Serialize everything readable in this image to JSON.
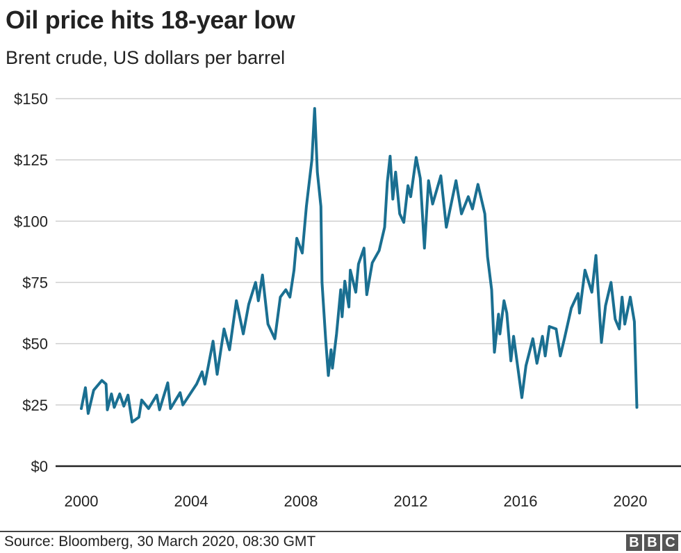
{
  "chart_data": {
    "type": "line",
    "title": "Oil price hits 18-year low",
    "subtitle": "Brent crude, US dollars per barrel",
    "xlabel": "",
    "ylabel": "",
    "xlim": [
      2000,
      2020.3
    ],
    "ylim": [
      0,
      150
    ],
    "x_ticks": [
      "2000",
      "2004",
      "2008",
      "2012",
      "2016",
      "2020"
    ],
    "y_ticks": [
      "$0",
      "$25",
      "$50",
      "$75",
      "$100",
      "$125",
      "$150"
    ],
    "grid": "horizontal",
    "line_color": "#1a6f91",
    "series": [
      {
        "x": [
          2000.0,
          2000.15,
          2000.25,
          2000.45,
          2000.75,
          2000.9,
          2000.95,
          2001.1,
          2001.2,
          2001.4,
          2001.55,
          2001.7,
          2001.85,
          2002.1,
          2002.2,
          2002.45,
          2002.75,
          2002.85,
          2003.15,
          2003.25,
          2003.6,
          2003.7,
          2004.2,
          2004.4,
          2004.5,
          2004.8,
          2004.95,
          2005.2,
          2005.4,
          2005.65,
          2005.9,
          2006.1,
          2006.35,
          2006.45,
          2006.6,
          2006.8,
          2007.05,
          2007.25,
          2007.45,
          2007.6,
          2007.75,
          2007.85,
          2008.05,
          2008.2,
          2008.4,
          2008.5,
          2008.6,
          2008.73,
          2008.77,
          2008.9,
          2009.0,
          2009.1,
          2009.15,
          2009.3,
          2009.45,
          2009.5,
          2009.6,
          2009.75,
          2009.8,
          2010.0,
          2010.1,
          2010.3,
          2010.4,
          2010.6,
          2010.85,
          2011.05,
          2011.15,
          2011.25,
          2011.35,
          2011.45,
          2011.6,
          2011.75,
          2011.9,
          2012.0,
          2012.2,
          2012.35,
          2012.5,
          2012.65,
          2012.8,
          2013.1,
          2013.3,
          2013.65,
          2013.85,
          2014.1,
          2014.25,
          2014.45,
          2014.7,
          2014.8,
          2014.95,
          2015.05,
          2015.2,
          2015.25,
          2015.4,
          2015.5,
          2015.65,
          2015.75,
          2016.05,
          2016.2,
          2016.45,
          2016.6,
          2016.8,
          2016.9,
          2017.05,
          2017.3,
          2017.45,
          2017.6,
          2017.85,
          2018.1,
          2018.15,
          2018.35,
          2018.6,
          2018.75,
          2018.85,
          2018.95,
          2019.1,
          2019.3,
          2019.45,
          2019.6,
          2019.7,
          2019.8,
          2020.0,
          2020.15,
          2020.24
        ],
        "y": [
          23.5,
          32,
          21.5,
          31,
          35,
          33.5,
          23,
          29.5,
          24,
          29.5,
          24.5,
          29,
          18,
          20,
          27,
          23.5,
          29,
          23,
          34,
          23.5,
          30,
          25,
          33.5,
          38.5,
          33.5,
          51,
          37.5,
          56,
          47.5,
          67.5,
          54,
          66,
          75,
          67.5,
          78,
          58,
          52,
          69,
          72,
          69,
          80,
          93,
          87,
          106,
          125,
          146,
          120,
          106,
          75,
          52,
          37,
          47.5,
          40,
          54,
          72,
          61,
          75.5,
          65,
          80,
          71,
          82.5,
          89,
          70,
          83,
          88,
          97.5,
          116,
          126.5,
          109,
          120,
          103,
          99.5,
          114.5,
          110,
          126,
          117.5,
          89,
          116.5,
          107,
          118.5,
          97.5,
          116.5,
          103,
          110,
          105,
          115,
          103,
          85.5,
          72,
          46.5,
          62,
          54,
          67.5,
          62.5,
          43,
          53,
          28,
          41,
          52,
          42,
          53,
          45,
          57,
          56,
          45,
          52,
          64.5,
          70.5,
          62.5,
          80,
          71,
          86,
          68,
          50.5,
          65.5,
          75,
          60,
          56,
          69,
          58,
          69,
          59,
          24
        ]
      }
    ]
  },
  "footer": {
    "source": "Source: Bloomberg, 30 March 2020, 08:30 GMT",
    "logo": [
      "B",
      "B",
      "C"
    ]
  }
}
